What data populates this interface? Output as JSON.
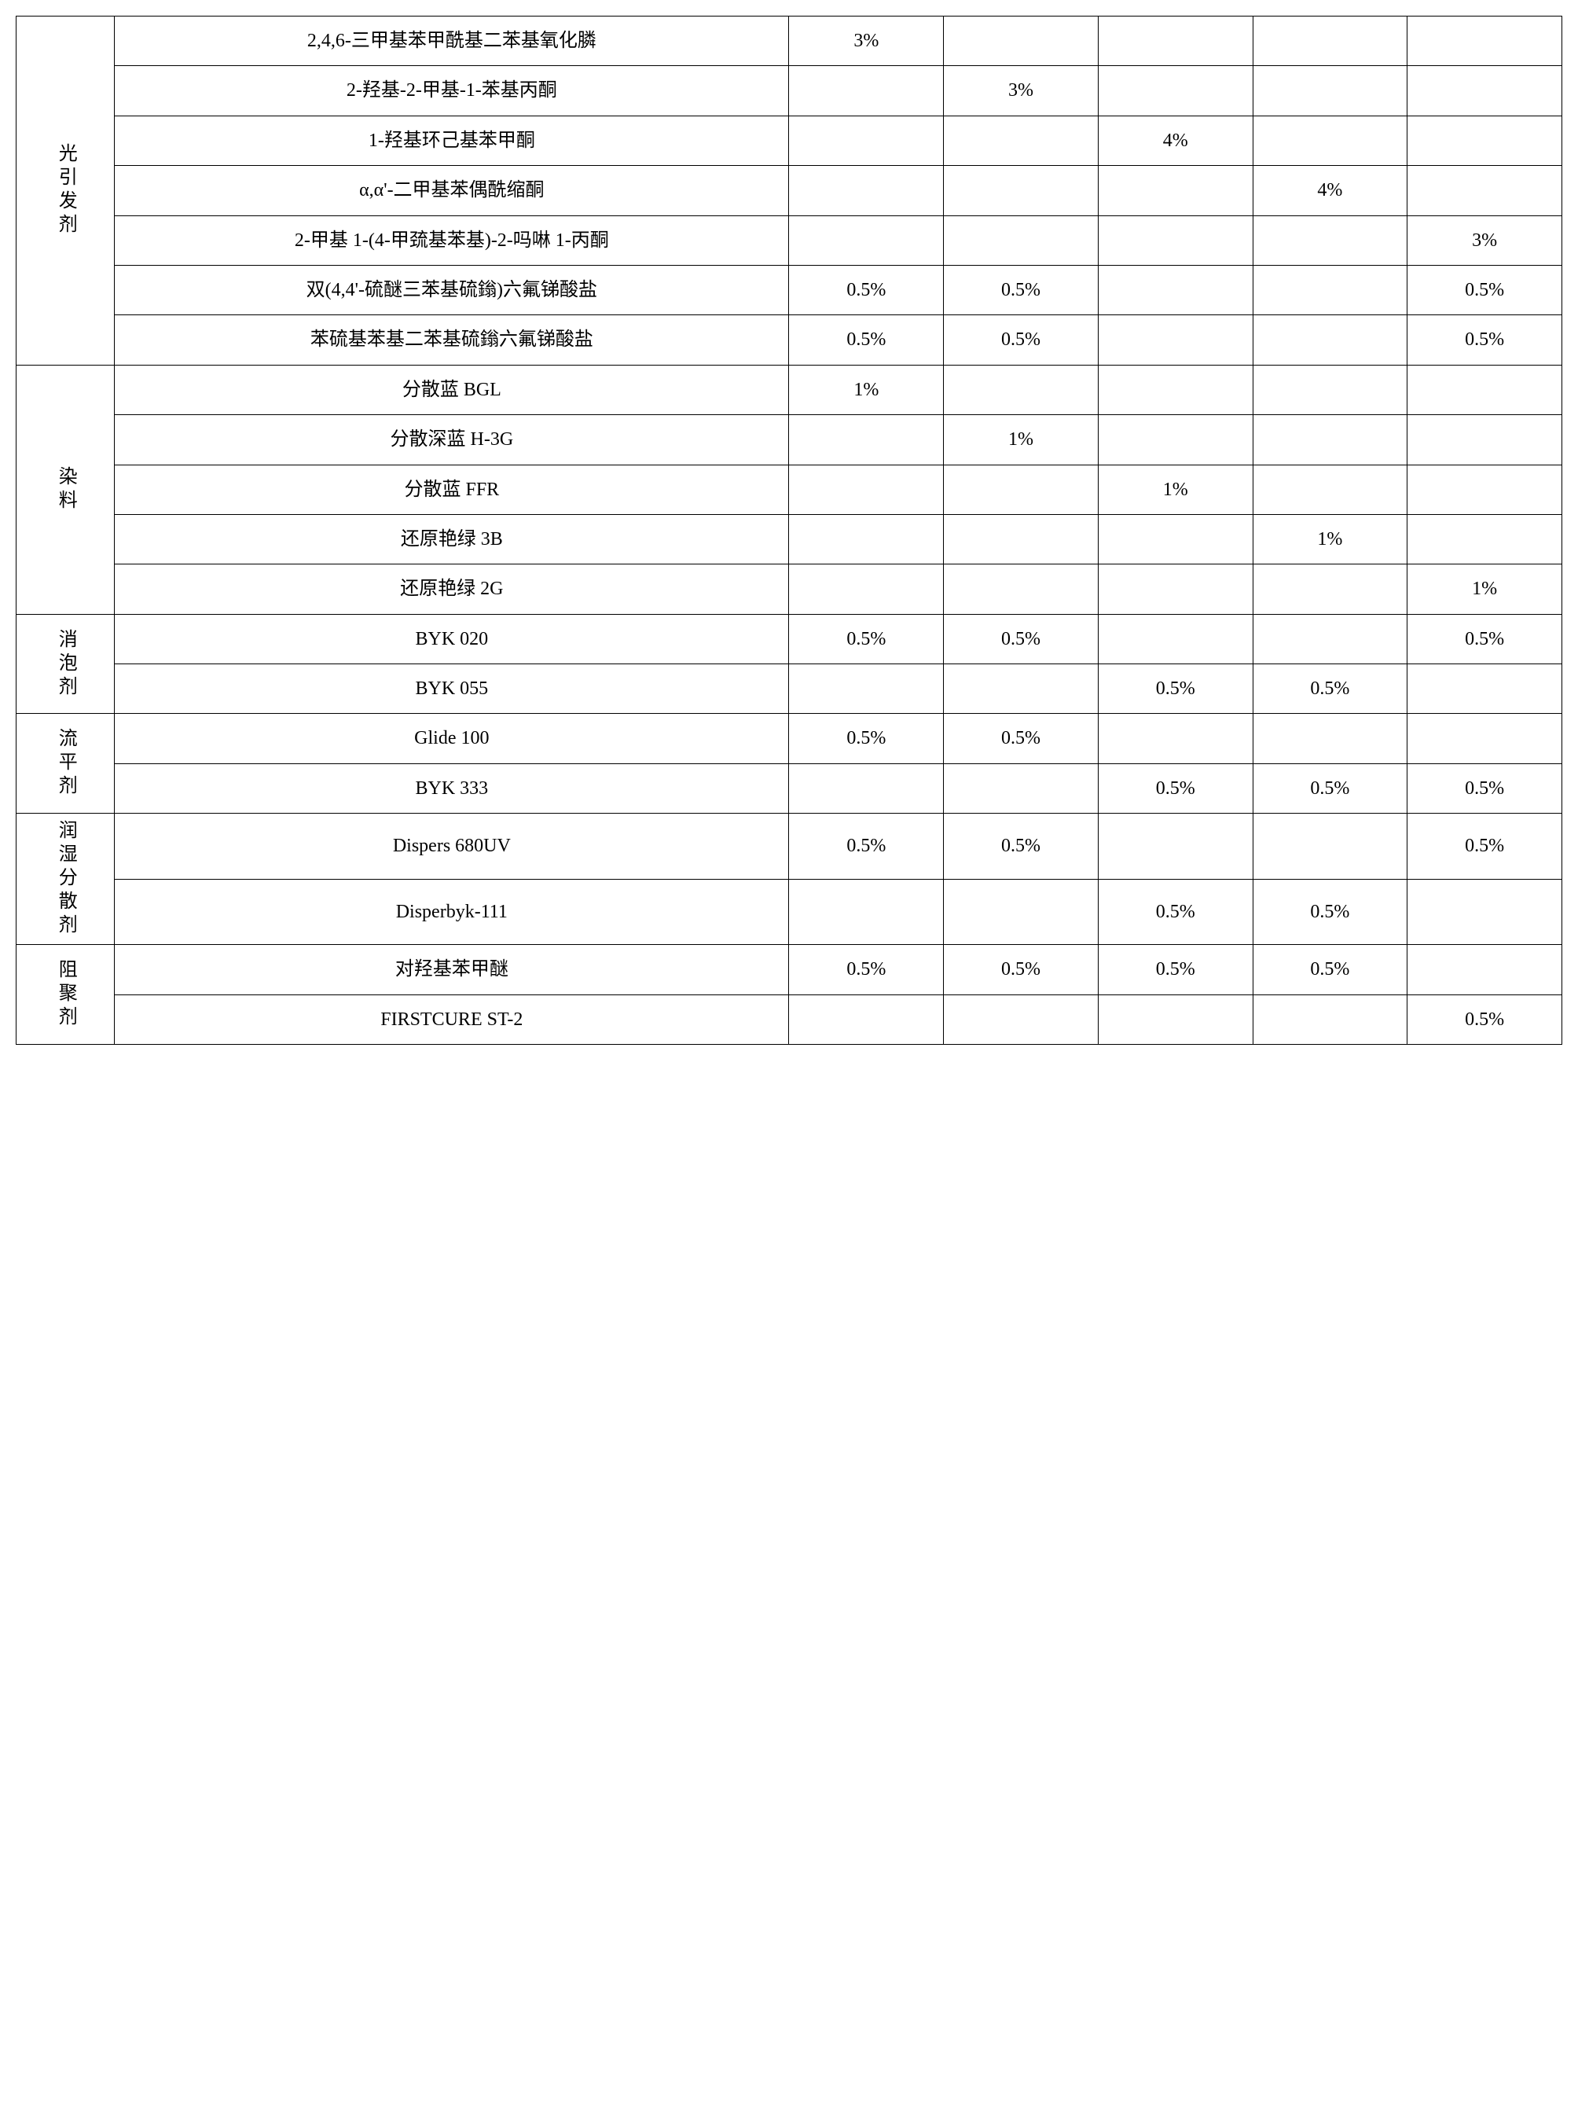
{
  "sections": [
    {
      "category": "光引发剂",
      "rows": [
        {
          "item": "2,4,6-三甲基苯甲酰基二苯基氧化膦",
          "values": [
            "3%",
            "",
            "",
            "",
            ""
          ]
        },
        {
          "item": "2-羟基-2-甲基-1-苯基丙酮",
          "values": [
            "",
            "3%",
            "",
            "",
            ""
          ]
        },
        {
          "item": "1-羟基环己基苯甲酮",
          "values": [
            "",
            "",
            "4%",
            "",
            ""
          ]
        },
        {
          "item": "α,α'-二甲基苯偶酰缩酮",
          "values": [
            "",
            "",
            "",
            "4%",
            ""
          ]
        },
        {
          "item": "2-甲基 1-(4-甲巯基苯基)-2-吗啉 1-丙酮",
          "values": [
            "",
            "",
            "",
            "",
            "3%"
          ]
        },
        {
          "item": "双(4,4'-硫醚三苯基硫鎓)六氟锑酸盐",
          "values": [
            "0.5%",
            "0.5%",
            "",
            "",
            "0.5%"
          ]
        },
        {
          "item": "苯硫基苯基二苯基硫鎓六氟锑酸盐",
          "values": [
            "0.5%",
            "0.5%",
            "",
            "",
            "0.5%"
          ]
        }
      ]
    },
    {
      "category": "染料",
      "rows": [
        {
          "item": "分散蓝 BGL",
          "values": [
            "1%",
            "",
            "",
            "",
            ""
          ]
        },
        {
          "item": "分散深蓝 H-3G",
          "values": [
            "",
            "1%",
            "",
            "",
            ""
          ]
        },
        {
          "item": "分散蓝 FFR",
          "values": [
            "",
            "",
            "1%",
            "",
            ""
          ]
        },
        {
          "item": "还原艳绿 3B",
          "values": [
            "",
            "",
            "",
            "1%",
            ""
          ]
        },
        {
          "item": "还原艳绿 2G",
          "values": [
            "",
            "",
            "",
            "",
            "1%"
          ]
        }
      ]
    },
    {
      "category": "消泡剂",
      "rows": [
        {
          "item": "BYK 020",
          "values": [
            "0.5%",
            "0.5%",
            "",
            "",
            "0.5%"
          ]
        },
        {
          "item": "BYK 055",
          "values": [
            "",
            "",
            "0.5%",
            "0.5%",
            ""
          ]
        }
      ]
    },
    {
      "category": "流平剂",
      "rows": [
        {
          "item": "Glide 100",
          "values": [
            "0.5%",
            "0.5%",
            "",
            "",
            ""
          ]
        },
        {
          "item": "BYK 333",
          "values": [
            "",
            "",
            "0.5%",
            "0.5%",
            "0.5%"
          ]
        }
      ]
    },
    {
      "category": "润湿分散剂",
      "rows": [
        {
          "item": "Dispers 680UV",
          "values": [
            "0.5%",
            "0.5%",
            "",
            "",
            "0.5%"
          ]
        },
        {
          "item": "Disperbyk-111",
          "values": [
            "",
            "",
            "0.5%",
            "0.5%",
            ""
          ]
        }
      ]
    },
    {
      "category": "阻聚剂",
      "rows": [
        {
          "item": "对羟基苯甲醚",
          "values": [
            "0.5%",
            "0.5%",
            "0.5%",
            "0.5%",
            ""
          ]
        },
        {
          "item": "FIRSTCURE ST-2",
          "values": [
            "",
            "",
            "",
            "",
            "0.5%"
          ]
        }
      ]
    }
  ],
  "table_style": {
    "border_color": "#000000",
    "border_width": 1.5,
    "background_color": "#ffffff",
    "font_family": "SimSun",
    "cell_font_size": 24,
    "category_col_width": 70,
    "item_col_width": 480,
    "value_col_width": 110,
    "num_value_columns": 5
  }
}
